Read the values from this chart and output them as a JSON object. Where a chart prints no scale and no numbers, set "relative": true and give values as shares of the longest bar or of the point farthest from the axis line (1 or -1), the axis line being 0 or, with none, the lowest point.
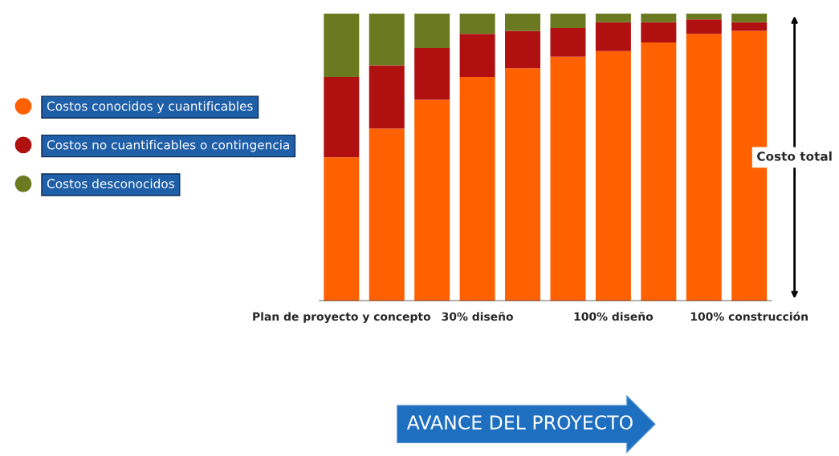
{
  "chart_data": {
    "type": "bar",
    "stacked": true,
    "relative": true,
    "legend": "left",
    "grid": false,
    "categories": [
      "Plan de proyecto y concepto",
      null,
      null,
      "30% diseño",
      null,
      null,
      "100% diseño",
      null,
      null,
      "100% construcción"
    ],
    "series": [
      {
        "name": "Costos conocidos y cuantificables",
        "color": "#ff6000",
        "values": [
          0.5,
          0.6,
          0.7,
          0.78,
          0.81,
          0.85,
          0.87,
          0.9,
          0.93,
          0.94
        ]
      },
      {
        "name": "Costos no cuantificables o contingencia",
        "color": "#b01010",
        "values": [
          0.28,
          0.22,
          0.18,
          0.15,
          0.13,
          0.1,
          0.1,
          0.07,
          0.05,
          0.03
        ]
      },
      {
        "name": "Costos desconocidos",
        "color": "#6b7a20",
        "values": [
          0.22,
          0.18,
          0.12,
          0.07,
          0.06,
          0.05,
          0.03,
          0.03,
          0.02,
          0.03
        ]
      }
    ],
    "annotations": [
      "AVANCE DEL PROYECTO",
      "Costo total"
    ]
  }
}
